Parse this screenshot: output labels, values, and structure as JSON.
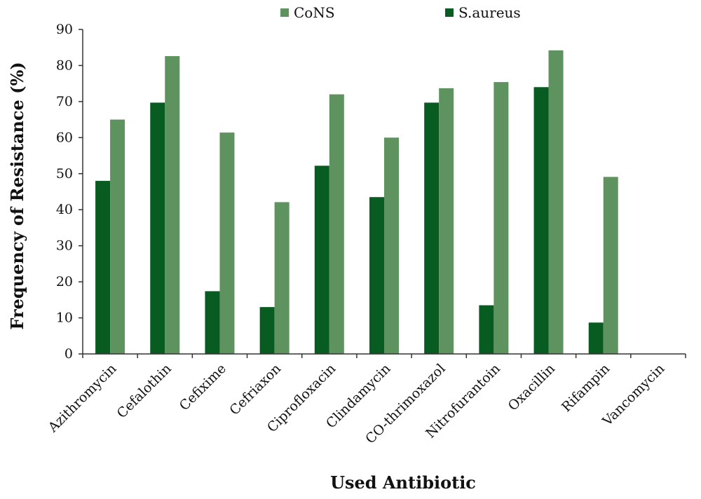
{
  "chart_data": {
    "type": "bar",
    "title": "",
    "xlabel": "Used Antibiotic",
    "ylabel": "Frequency of Resistance (%)",
    "ylim": [
      0,
      90
    ],
    "yticks": [
      0,
      10,
      20,
      30,
      40,
      50,
      60,
      70,
      80,
      90
    ],
    "grid": false,
    "legend_position": "top",
    "categories": [
      "Azithromycin",
      "Cefalothin",
      "Cefixime",
      "Cefriaxon",
      "Ciprofloxacin",
      "Clindamycin",
      "CO-thrimoxazol",
      "Nitrofurantoin",
      "Oxacillin",
      "Rifampin",
      "Vancomycin"
    ],
    "series": [
      {
        "name": "S.aureus",
        "color": "#085c21",
        "values": [
          48,
          69.7,
          17.4,
          13,
          52.2,
          43.5,
          69.7,
          13.5,
          74,
          8.7,
          0
        ]
      },
      {
        "name": "CoNS",
        "color": "#5e925e",
        "values": [
          65,
          82.6,
          61.4,
          42.1,
          72,
          60,
          73.7,
          75.4,
          84.2,
          49.1,
          0
        ]
      }
    ],
    "legend_order": [
      "CoNS",
      "S.aureus"
    ]
  }
}
